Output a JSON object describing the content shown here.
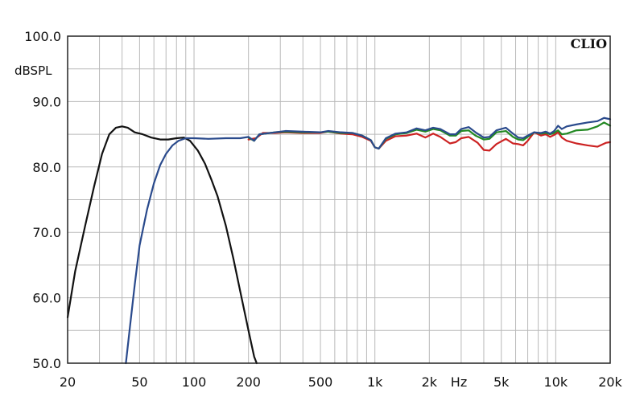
{
  "chart_data": {
    "type": "line",
    "brand": "CLIO",
    "xlabel": "Hz",
    "ylabel": "dBSPL",
    "x_scale": "log",
    "xlim": [
      20,
      20000
    ],
    "ylim": [
      50,
      100
    ],
    "grid": true,
    "x_ticks": [
      {
        "value": 20,
        "label": "20"
      },
      {
        "value": 50,
        "label": "50"
      },
      {
        "value": 100,
        "label": "100"
      },
      {
        "value": 200,
        "label": "200"
      },
      {
        "value": 500,
        "label": "500"
      },
      {
        "value": 1000,
        "label": "1k"
      },
      {
        "value": 2000,
        "label": "2k"
      },
      {
        "value": 5000,
        "label": "5k"
      },
      {
        "value": 10000,
        "label": "10k"
      },
      {
        "value": 20000,
        "label": "20k"
      }
    ],
    "y_ticks": [
      {
        "value": 100,
        "label": "100.0"
      },
      {
        "value": 90,
        "label": "90.0"
      },
      {
        "value": 80,
        "label": "80.0"
      },
      {
        "value": 70,
        "label": "70.0"
      },
      {
        "value": 60,
        "label": "60.0"
      },
      {
        "value": 50,
        "label": "50.0"
      }
    ],
    "series": [
      {
        "color": "#111111",
        "points": [
          [
            20,
            57
          ],
          [
            22,
            64
          ],
          [
            25,
            71
          ],
          [
            28,
            77
          ],
          [
            31,
            82
          ],
          [
            34,
            85
          ],
          [
            37,
            86
          ],
          [
            40,
            86.2
          ],
          [
            43,
            86
          ],
          [
            47,
            85.3
          ],
          [
            52,
            85
          ],
          [
            58,
            84.5
          ],
          [
            65,
            84.2
          ],
          [
            72,
            84.2
          ],
          [
            80,
            84.4
          ],
          [
            88,
            84.5
          ],
          [
            95,
            84
          ],
          [
            105,
            82.5
          ],
          [
            115,
            80.5
          ],
          [
            125,
            78
          ],
          [
            135,
            75.5
          ],
          [
            150,
            71
          ],
          [
            165,
            66
          ],
          [
            180,
            61
          ],
          [
            200,
            55
          ],
          [
            215,
            51
          ],
          [
            222,
            50
          ]
        ]
      },
      {
        "color": "#cc2222",
        "points": [
          [
            200,
            84.2
          ],
          [
            220,
            84.4
          ],
          [
            240,
            85.2
          ],
          [
            280,
            85.2
          ],
          [
            320,
            85.3
          ],
          [
            400,
            85.2
          ],
          [
            500,
            85.2
          ],
          [
            550,
            85.4
          ],
          [
            650,
            85.1
          ],
          [
            750,
            85
          ],
          [
            850,
            84.6
          ],
          [
            950,
            84
          ],
          [
            1000,
            83
          ],
          [
            1050,
            82.8
          ],
          [
            1150,
            84
          ],
          [
            1300,
            84.7
          ],
          [
            1500,
            84.8
          ],
          [
            1700,
            85.1
          ],
          [
            1900,
            84.5
          ],
          [
            2100,
            85.1
          ],
          [
            2300,
            84.6
          ],
          [
            2600,
            83.6
          ],
          [
            2800,
            83.8
          ],
          [
            3000,
            84.4
          ],
          [
            3300,
            84.6
          ],
          [
            3700,
            83.7
          ],
          [
            4000,
            82.6
          ],
          [
            4300,
            82.5
          ],
          [
            4700,
            83.5
          ],
          [
            5300,
            84.3
          ],
          [
            5800,
            83.6
          ],
          [
            6200,
            83.5
          ],
          [
            6600,
            83.3
          ],
          [
            7000,
            84
          ],
          [
            7600,
            85.3
          ],
          [
            8300,
            84.8
          ],
          [
            8800,
            85
          ],
          [
            9300,
            84.6
          ],
          [
            9800,
            84.9
          ],
          [
            10300,
            85.3
          ],
          [
            10800,
            84.5
          ],
          [
            11500,
            84
          ],
          [
            13000,
            83.6
          ],
          [
            15000,
            83.3
          ],
          [
            17000,
            83.1
          ],
          [
            19000,
            83.7
          ],
          [
            20000,
            83.8
          ]
        ]
      },
      {
        "color": "#228822",
        "points": [
          [
            200,
            84.5
          ],
          [
            215,
            84
          ],
          [
            230,
            85
          ],
          [
            280,
            85.3
          ],
          [
            320,
            85.4
          ],
          [
            400,
            85.3
          ],
          [
            500,
            85.3
          ],
          [
            550,
            85.4
          ],
          [
            650,
            85.2
          ],
          [
            750,
            85.2
          ],
          [
            850,
            84.8
          ],
          [
            950,
            84.1
          ],
          [
            1000,
            83
          ],
          [
            1050,
            82.8
          ],
          [
            1150,
            84.3
          ],
          [
            1300,
            85
          ],
          [
            1500,
            85.2
          ],
          [
            1700,
            85.7
          ],
          [
            1900,
            85.4
          ],
          [
            2100,
            85.8
          ],
          [
            2300,
            85.6
          ],
          [
            2600,
            84.8
          ],
          [
            2800,
            84.8
          ],
          [
            3000,
            85.5
          ],
          [
            3300,
            85.6
          ],
          [
            3600,
            84.8
          ],
          [
            4000,
            84.2
          ],
          [
            4300,
            84.3
          ],
          [
            4700,
            85.3
          ],
          [
            5300,
            85.5
          ],
          [
            5800,
            84.6
          ],
          [
            6200,
            84.2
          ],
          [
            6600,
            84.1
          ],
          [
            7000,
            84.6
          ],
          [
            7600,
            85.3
          ],
          [
            8300,
            85.1
          ],
          [
            8800,
            85.2
          ],
          [
            9300,
            85
          ],
          [
            9800,
            85.2
          ],
          [
            10300,
            85.6
          ],
          [
            10800,
            85
          ],
          [
            11500,
            85.1
          ],
          [
            13000,
            85.6
          ],
          [
            15000,
            85.7
          ],
          [
            17000,
            86.2
          ],
          [
            18500,
            86.8
          ],
          [
            20000,
            86.3
          ]
        ]
      },
      {
        "color": "#2a4a8c",
        "points": [
          [
            42,
            50
          ],
          [
            44,
            55
          ],
          [
            47,
            62
          ],
          [
            50,
            68
          ],
          [
            55,
            73.5
          ],
          [
            60,
            77.5
          ],
          [
            65,
            80.3
          ],
          [
            70,
            82
          ],
          [
            76,
            83.3
          ],
          [
            82,
            84
          ],
          [
            90,
            84.4
          ],
          [
            100,
            84.4
          ],
          [
            120,
            84.3
          ],
          [
            150,
            84.4
          ],
          [
            180,
            84.4
          ],
          [
            200,
            84.6
          ],
          [
            215,
            84
          ],
          [
            230,
            85
          ],
          [
            280,
            85.3
          ],
          [
            320,
            85.5
          ],
          [
            400,
            85.4
          ],
          [
            500,
            85.3
          ],
          [
            550,
            85.5
          ],
          [
            650,
            85.3
          ],
          [
            750,
            85.2
          ],
          [
            850,
            84.8
          ],
          [
            950,
            84.1
          ],
          [
            1000,
            83
          ],
          [
            1050,
            82.8
          ],
          [
            1150,
            84.4
          ],
          [
            1300,
            85.1
          ],
          [
            1500,
            85.3
          ],
          [
            1700,
            85.9
          ],
          [
            1900,
            85.6
          ],
          [
            2100,
            86
          ],
          [
            2300,
            85.8
          ],
          [
            2600,
            85
          ],
          [
            2800,
            85
          ],
          [
            3000,
            85.8
          ],
          [
            3300,
            86.1
          ],
          [
            3600,
            85.3
          ],
          [
            4000,
            84.5
          ],
          [
            4300,
            84.6
          ],
          [
            4700,
            85.6
          ],
          [
            5300,
            86
          ],
          [
            5800,
            85.1
          ],
          [
            6200,
            84.5
          ],
          [
            6600,
            84.4
          ],
          [
            7000,
            84.8
          ],
          [
            7600,
            85.3
          ],
          [
            8300,
            85.2
          ],
          [
            8800,
            85.4
          ],
          [
            9300,
            85.1
          ],
          [
            9800,
            85.5
          ],
          [
            10300,
            86.3
          ],
          [
            10800,
            85.8
          ],
          [
            11500,
            86.2
          ],
          [
            13000,
            86.5
          ],
          [
            15000,
            86.8
          ],
          [
            17000,
            87
          ],
          [
            18500,
            87.5
          ],
          [
            20000,
            87.3
          ]
        ]
      }
    ]
  }
}
